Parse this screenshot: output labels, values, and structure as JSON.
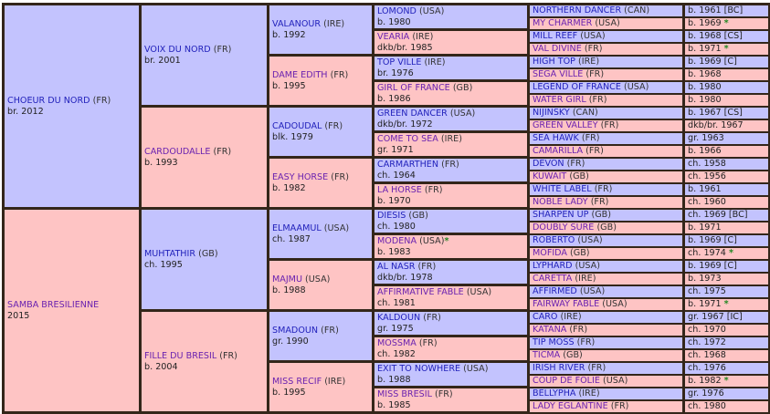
{
  "pedigree": {
    "gen1": [
      {
        "name": "CHOEUR DU NORD",
        "country": "(FR)",
        "info": "br. 2012",
        "sex": "m"
      },
      {
        "name": "SAMBA BRESILIENNE",
        "country": "",
        "info": "2015",
        "sex": "f"
      }
    ],
    "gen2": [
      {
        "name": "VOIX DU NORD",
        "country": "(FR)",
        "info": "br. 2001",
        "sex": "m"
      },
      {
        "name": "CARDOUDALLE",
        "country": "(FR)",
        "info": "b. 1993",
        "sex": "f"
      },
      {
        "name": "MUHTATHIR",
        "country": "(GB)",
        "info": "ch. 1995",
        "sex": "m"
      },
      {
        "name": "FILLE DU BRESIL",
        "country": "(FR)",
        "info": "b. 2004",
        "sex": "f"
      }
    ],
    "gen3": [
      {
        "name": "VALANOUR",
        "country": "(IRE)",
        "info": "b. 1992",
        "sex": "m"
      },
      {
        "name": "DAME EDITH",
        "country": "(FR)",
        "info": "b. 1995",
        "sex": "f"
      },
      {
        "name": "CADOUDAL",
        "country": "(FR)",
        "info": "blk. 1979",
        "sex": "m"
      },
      {
        "name": "EASY HORSE",
        "country": "(FR)",
        "info": "b. 1982",
        "sex": "f"
      },
      {
        "name": "ELMAAMUL",
        "country": "(USA)",
        "info": "ch. 1987",
        "sex": "m"
      },
      {
        "name": "MAJMU",
        "country": "(USA)",
        "info": "b. 1988",
        "sex": "f"
      },
      {
        "name": "SMADOUN",
        "country": "(FR)",
        "info": "gr. 1990",
        "sex": "m"
      },
      {
        "name": "MISS RECIF",
        "country": "(IRE)",
        "info": "b. 1995",
        "sex": "f"
      }
    ],
    "gen4": [
      {
        "name": "LOMOND",
        "country": "(USA)",
        "info": "b. 1980",
        "sex": "m",
        "star": ""
      },
      {
        "name": "VEARIA",
        "country": "(IRE)",
        "info": "dkb/br. 1985",
        "sex": "f",
        "star": ""
      },
      {
        "name": "TOP VILLE",
        "country": "(IRE)",
        "info": "br. 1976",
        "sex": "m",
        "star": ""
      },
      {
        "name": "GIRL OF FRANCE",
        "country": "(GB)",
        "info": "b. 1986",
        "sex": "f",
        "star": ""
      },
      {
        "name": "GREEN DANCER",
        "country": "(USA)",
        "info": "dkb/br. 1972",
        "sex": "m",
        "star": ""
      },
      {
        "name": "COME TO SEA",
        "country": "(IRE)",
        "info": "gr. 1971",
        "sex": "f",
        "star": ""
      },
      {
        "name": "CARMARTHEN",
        "country": "(FR)",
        "info": "ch. 1964",
        "sex": "m",
        "star": ""
      },
      {
        "name": "LA HORSE",
        "country": "(FR)",
        "info": "b. 1970",
        "sex": "f",
        "star": ""
      },
      {
        "name": "DIESIS",
        "country": "(GB)",
        "info": "ch. 1980",
        "sex": "m",
        "star": ""
      },
      {
        "name": "MODENA",
        "country": "(USA)",
        "info": "b. 1983",
        "sex": "f",
        "star": "*"
      },
      {
        "name": "AL NASR",
        "country": "(FR)",
        "info": "dkb/br. 1978",
        "sex": "m",
        "star": ""
      },
      {
        "name": "AFFIRMATIVE FABLE",
        "country": "(USA)",
        "info": "ch. 1981",
        "sex": "f",
        "star": ""
      },
      {
        "name": "KALDOUN",
        "country": "(FR)",
        "info": "gr. 1975",
        "sex": "m",
        "star": ""
      },
      {
        "name": "MOSSMA",
        "country": "(FR)",
        "info": "ch. 1982",
        "sex": "f",
        "star": ""
      },
      {
        "name": "EXIT TO NOWHERE",
        "country": "(USA)",
        "info": "b. 1988",
        "sex": "m",
        "star": ""
      },
      {
        "name": "MISS BRESIL",
        "country": "(FR)",
        "info": "b. 1985",
        "sex": "f",
        "star": ""
      }
    ],
    "gen5": [
      {
        "name": "NORTHERN DANCER",
        "country": "(CAN)",
        "info": "b. 1961 [BC]",
        "sex": "m",
        "star": ""
      },
      {
        "name": "MY CHARMER",
        "country": "(USA)",
        "info": "b. 1969",
        "sex": "f",
        "star": "*"
      },
      {
        "name": "MILL REEF",
        "country": "(USA)",
        "info": "b. 1968 [CS]",
        "sex": "m",
        "star": ""
      },
      {
        "name": "VAL DIVINE",
        "country": "(FR)",
        "info": "b. 1971",
        "sex": "f",
        "star": "*"
      },
      {
        "name": "HIGH TOP",
        "country": "(IRE)",
        "info": "b. 1969 [C]",
        "sex": "m",
        "star": ""
      },
      {
        "name": "SEGA VILLE",
        "country": "(FR)",
        "info": "b. 1968",
        "sex": "f",
        "star": ""
      },
      {
        "name": "LEGEND OF FRANCE",
        "country": "(USA)",
        "info": "b. 1980",
        "sex": "m",
        "star": ""
      },
      {
        "name": "WATER GIRL",
        "country": "(FR)",
        "info": "b. 1980",
        "sex": "f",
        "star": ""
      },
      {
        "name": "NIJINSKY",
        "country": "(CAN)",
        "info": "b. 1967 [CS]",
        "sex": "m",
        "star": ""
      },
      {
        "name": "GREEN VALLEY",
        "country": "(FR)",
        "info": "dkb/br. 1967",
        "sex": "f",
        "star": ""
      },
      {
        "name": "SEA HAWK",
        "country": "(FR)",
        "info": "gr. 1963",
        "sex": "m",
        "star": ""
      },
      {
        "name": "CAMARILLA",
        "country": "(FR)",
        "info": "b. 1966",
        "sex": "f",
        "star": ""
      },
      {
        "name": "DEVON",
        "country": "(FR)",
        "info": "ch. 1958",
        "sex": "m",
        "star": ""
      },
      {
        "name": "KUWAIT",
        "country": "(GB)",
        "info": "ch. 1956",
        "sex": "f",
        "star": ""
      },
      {
        "name": "WHITE LABEL",
        "country": "(FR)",
        "info": "b. 1961",
        "sex": "m",
        "star": ""
      },
      {
        "name": "NOBLE LADY",
        "country": "(FR)",
        "info": "ch. 1960",
        "sex": "f",
        "star": ""
      },
      {
        "name": "SHARPEN UP",
        "country": "(GB)",
        "info": "ch. 1969 [BC]",
        "sex": "m",
        "star": ""
      },
      {
        "name": "DOUBLY SURE",
        "country": "(GB)",
        "info": "b. 1971",
        "sex": "f",
        "star": ""
      },
      {
        "name": "ROBERTO",
        "country": "(USA)",
        "info": "b. 1969 [C]",
        "sex": "m",
        "star": ""
      },
      {
        "name": "MOFIDA",
        "country": "(GB)",
        "info": "ch. 1974",
        "sex": "f",
        "star": "*"
      },
      {
        "name": "LYPHARD",
        "country": "(USA)",
        "info": "b. 1969 [C]",
        "sex": "m",
        "star": ""
      },
      {
        "name": "CARETTA",
        "country": "(IRE)",
        "info": "b. 1973",
        "sex": "f",
        "star": ""
      },
      {
        "name": "AFFIRMED",
        "country": "(USA)",
        "info": "ch. 1975",
        "sex": "m",
        "star": ""
      },
      {
        "name": "FAIRWAY FABLE",
        "country": "(USA)",
        "info": "b. 1971",
        "sex": "f",
        "star": "*"
      },
      {
        "name": "CARO",
        "country": "(IRE)",
        "info": "gr. 1967 [IC]",
        "sex": "m",
        "star": ""
      },
      {
        "name": "KATANA",
        "country": "(FR)",
        "info": "ch. 1970",
        "sex": "f",
        "star": ""
      },
      {
        "name": "TIP MOSS",
        "country": "(FR)",
        "info": "ch. 1972",
        "sex": "m",
        "star": ""
      },
      {
        "name": "TICMA",
        "country": "(GB)",
        "info": "ch. 1968",
        "sex": "f",
        "star": ""
      },
      {
        "name": "IRISH RIVER",
        "country": "(FR)",
        "info": "ch. 1976",
        "sex": "m",
        "star": ""
      },
      {
        "name": "COUP DE FOLIE",
        "country": "(USA)",
        "info": "b. 1982",
        "sex": "f",
        "star": "*"
      },
      {
        "name": "BELLYPHA",
        "country": "(IRE)",
        "info": "gr. 1976",
        "sex": "m",
        "star": ""
      },
      {
        "name": "LADY EGLANTINE",
        "country": "(FR)",
        "info": "ch. 1980",
        "sex": "f",
        "star": ""
      }
    ]
  },
  "colors": {
    "male_bg": "#c3c3fe",
    "female_bg": "#fec4c4",
    "border": "#33261a",
    "male_name": "#2222bb",
    "female_name": "#6a22b0",
    "star": "#228822"
  }
}
